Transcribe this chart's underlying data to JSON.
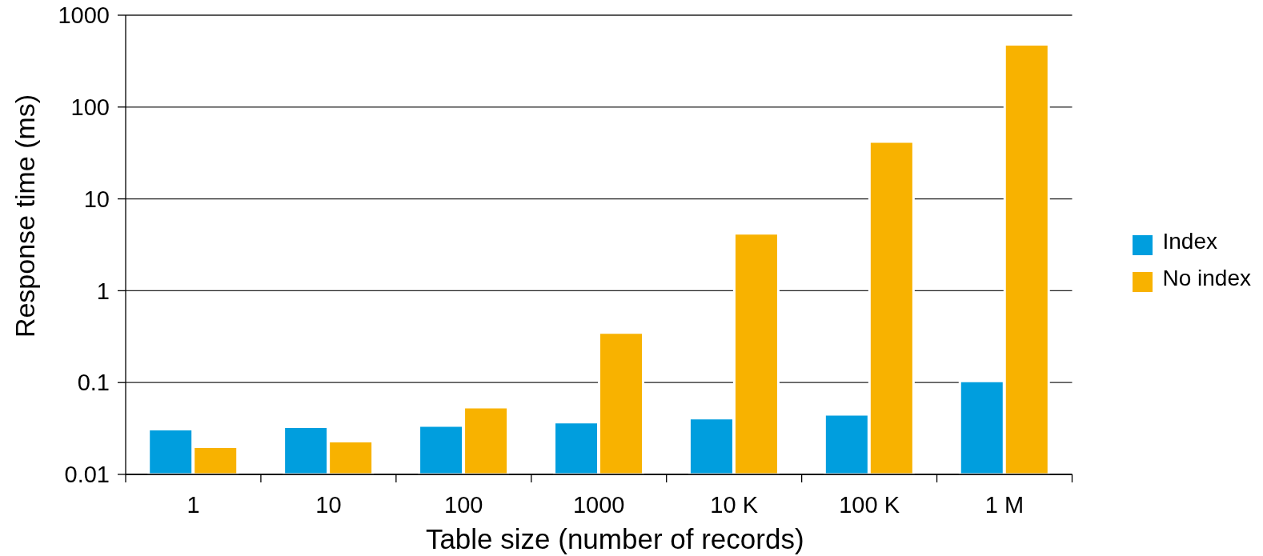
{
  "chart_data": {
    "type": "bar",
    "xlabel": "Table size (number of records)",
    "ylabel": "Response time (ms)",
    "categories": [
      "1",
      "10",
      "100",
      "1000",
      "10 K",
      "100 K",
      "1 M"
    ],
    "series": [
      {
        "name": "Index",
        "color": "#009ede",
        "values": [
          0.031,
          0.033,
          0.034,
          0.037,
          0.041,
          0.045,
          0.104
        ]
      },
      {
        "name": "No index",
        "color": "#f8b200",
        "values": [
          0.02,
          0.023,
          0.054,
          0.35,
          4.2,
          42,
          480
        ]
      }
    ],
    "log": true,
    "ylim": [
      0.01,
      1000
    ],
    "yticks": [
      0.01,
      0.1,
      1,
      10,
      100,
      1000
    ],
    "grid": "y",
    "legend": "right"
  }
}
